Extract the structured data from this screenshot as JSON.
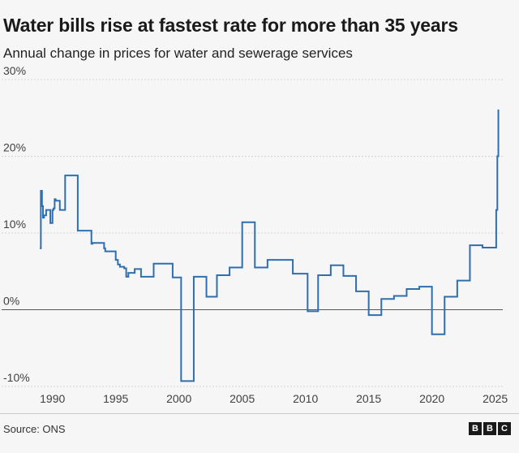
{
  "header": {
    "title": "Water bills rise at fastest rate for more than 35 years",
    "subtitle": "Annual change in prices for water and sewerage services"
  },
  "footer": {
    "source": "Source: ONS",
    "logo_letters": [
      "B",
      "B",
      "C"
    ]
  },
  "chart_data": {
    "type": "line",
    "title": "Water bills rise at fastest rate for more than 35 years",
    "subtitle": "Annual change in prices for water and sewerage services",
    "xlabel": "",
    "ylabel": "",
    "xlim": [
      1988.8,
      2025.6
    ],
    "ylim": [
      -10,
      30
    ],
    "y_ticks": [
      -10,
      0,
      10,
      20,
      30
    ],
    "y_tick_labels": [
      "-10%",
      "0%",
      "10%",
      "20%",
      "30%"
    ],
    "x_ticks": [
      1990,
      1995,
      2000,
      2005,
      2010,
      2015,
      2020,
      2025
    ],
    "x_tick_labels": [
      "1990",
      "1995",
      "2000",
      "2005",
      "2010",
      "2015",
      "2020",
      "2025"
    ],
    "gridlines": "horizontal",
    "line_color": "#2f6fb0",
    "series": [
      {
        "name": "Water and sewerage services",
        "step": true,
        "x": [
          1989.0,
          1989.08,
          1989.17,
          1989.25,
          1989.33,
          1989.42,
          1989.5,
          1989.67,
          1989.83,
          1990.0,
          1990.08,
          1990.17,
          1990.25,
          1990.42,
          1990.58,
          1990.75,
          1991.0,
          1991.08,
          1991.17,
          1992.0,
          1992.17,
          1993.0,
          1993.08,
          1993.17,
          1994.0,
          1994.08,
          1994.17,
          1994.33,
          1995.0,
          1995.17,
          1995.33,
          1995.67,
          1995.83,
          1996.0,
          1996.17,
          1996.5,
          1997.0,
          1998.0,
          1999.0,
          1999.5,
          2000.0,
          2000.17,
          2001.0,
          2001.17,
          2002.0,
          2002.17,
          2003.0,
          2004.0,
          2005.0,
          2006.0,
          2007.0,
          2008.0,
          2009.0,
          2010.0,
          2010.17,
          2011.0,
          2012.0,
          2013.0,
          2014.0,
          2015.0,
          2016.0,
          2017.0,
          2018.0,
          2019.0,
          2020.0,
          2021.0,
          2022.0,
          2023.0,
          2024.0,
          2025.0,
          2025.08,
          2025.17,
          2025.25
        ],
        "values": [
          8.0,
          15.5,
          13.5,
          12.0,
          12.3,
          12.3,
          13.0,
          13.0,
          11.3,
          13.0,
          13.2,
          14.4,
          14.2,
          14.2,
          13.0,
          13.0,
          17.5,
          17.5,
          17.5,
          10.3,
          10.3,
          10.3,
          8.6,
          8.7,
          8.7,
          8.0,
          7.6,
          7.6,
          6.5,
          5.9,
          5.6,
          5.4,
          4.3,
          4.8,
          4.8,
          5.3,
          4.3,
          6.0,
          6.0,
          4.2,
          4.2,
          -9.3,
          -9.3,
          4.3,
          4.3,
          1.7,
          4.5,
          5.5,
          11.4,
          5.5,
          6.5,
          6.5,
          4.7,
          4.7,
          -0.2,
          4.5,
          5.8,
          4.4,
          2.4,
          -0.7,
          1.4,
          1.8,
          2.7,
          3.0,
          -3.2,
          1.7,
          3.8,
          8.4,
          8.1,
          8.1,
          13.0,
          20.0,
          26.1
        ]
      }
    ]
  }
}
